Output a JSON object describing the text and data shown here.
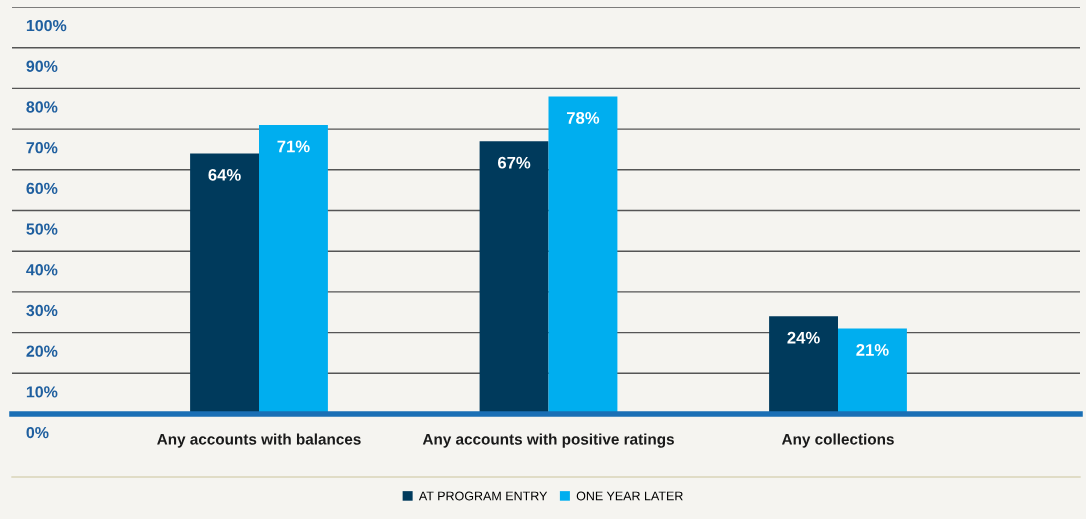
{
  "chart_data": {
    "type": "bar",
    "categories": [
      "Any accounts with balances",
      "Any accounts with positive ratings",
      "Any collections"
    ],
    "series": [
      {
        "name": "AT PROGRAM ENTRY",
        "color": "#003a5c",
        "values": [
          64,
          67,
          24
        ],
        "value_labels": [
          "64%",
          "67%",
          "24%"
        ]
      },
      {
        "name": "ONE YEAR LATER",
        "color": "#00aeef",
        "values": [
          71,
          78,
          21
        ],
        "value_labels": [
          "71%",
          "78%",
          "21%"
        ]
      }
    ],
    "ylim": [
      0,
      100
    ],
    "yticks": [
      {
        "value": 0,
        "label": "0%"
      },
      {
        "value": 10,
        "label": "10%"
      },
      {
        "value": 20,
        "label": "20%"
      },
      {
        "value": 30,
        "label": "30%"
      },
      {
        "value": 40,
        "label": "40%"
      },
      {
        "value": 50,
        "label": "50%"
      },
      {
        "value": 60,
        "label": "60%"
      },
      {
        "value": 70,
        "label": "70%"
      },
      {
        "value": 80,
        "label": "80%"
      },
      {
        "value": 90,
        "label": "90%"
      },
      {
        "value": 100,
        "label": "100%"
      }
    ],
    "grid": "y",
    "legend": "bottom"
  }
}
